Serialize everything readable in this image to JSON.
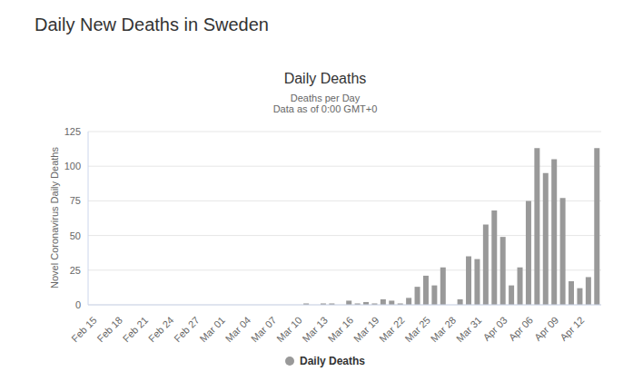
{
  "chart_data": {
    "type": "bar",
    "page_title": "Daily New Deaths in Sweden",
    "title": "Daily Deaths",
    "subtitle": "Deaths per Day",
    "note": "Data as of 0:00 GMT+0",
    "y_label": "Novel Coronavirus Daily Deaths",
    "categories": [
      "Feb 15",
      null,
      null,
      "Feb 18",
      null,
      null,
      "Feb 21",
      null,
      null,
      "Feb 24",
      null,
      null,
      "Feb 27",
      null,
      null,
      "Mar 01",
      null,
      null,
      "Mar 04",
      null,
      null,
      "Mar 07",
      null,
      null,
      "Mar 10",
      null,
      null,
      "Mar 13",
      null,
      null,
      "Mar 16",
      null,
      null,
      "Mar 19",
      null,
      null,
      "Mar 22",
      null,
      null,
      "Mar 25",
      null,
      null,
      "Mar 28",
      null,
      null,
      "Mar 31",
      null,
      null,
      "Apr 03",
      null,
      null,
      "Apr 06",
      null,
      null,
      "Apr 09",
      null,
      null,
      "Apr 12",
      null,
      null
    ],
    "series": [
      {
        "name": "Daily Deaths",
        "color": "#999999",
        "values": [
          0,
          0,
          0,
          0,
          0,
          0,
          0,
          0,
          0,
          0,
          0,
          0,
          0,
          0,
          0,
          0,
          0,
          0,
          0,
          0,
          0,
          0,
          0,
          0,
          0,
          1,
          0,
          1,
          1,
          0,
          3,
          1,
          2,
          1,
          4,
          3,
          1,
          5,
          13,
          21,
          14,
          27,
          0,
          4,
          35,
          33,
          58,
          68,
          49,
          14,
          27,
          75,
          113,
          95,
          105,
          77,
          17,
          12,
          20,
          113
        ]
      }
    ],
    "ylim": [
      0,
      125
    ],
    "yticks": [
      0,
      25,
      50,
      75,
      100,
      125
    ],
    "grid": true,
    "legend": "bottom"
  }
}
